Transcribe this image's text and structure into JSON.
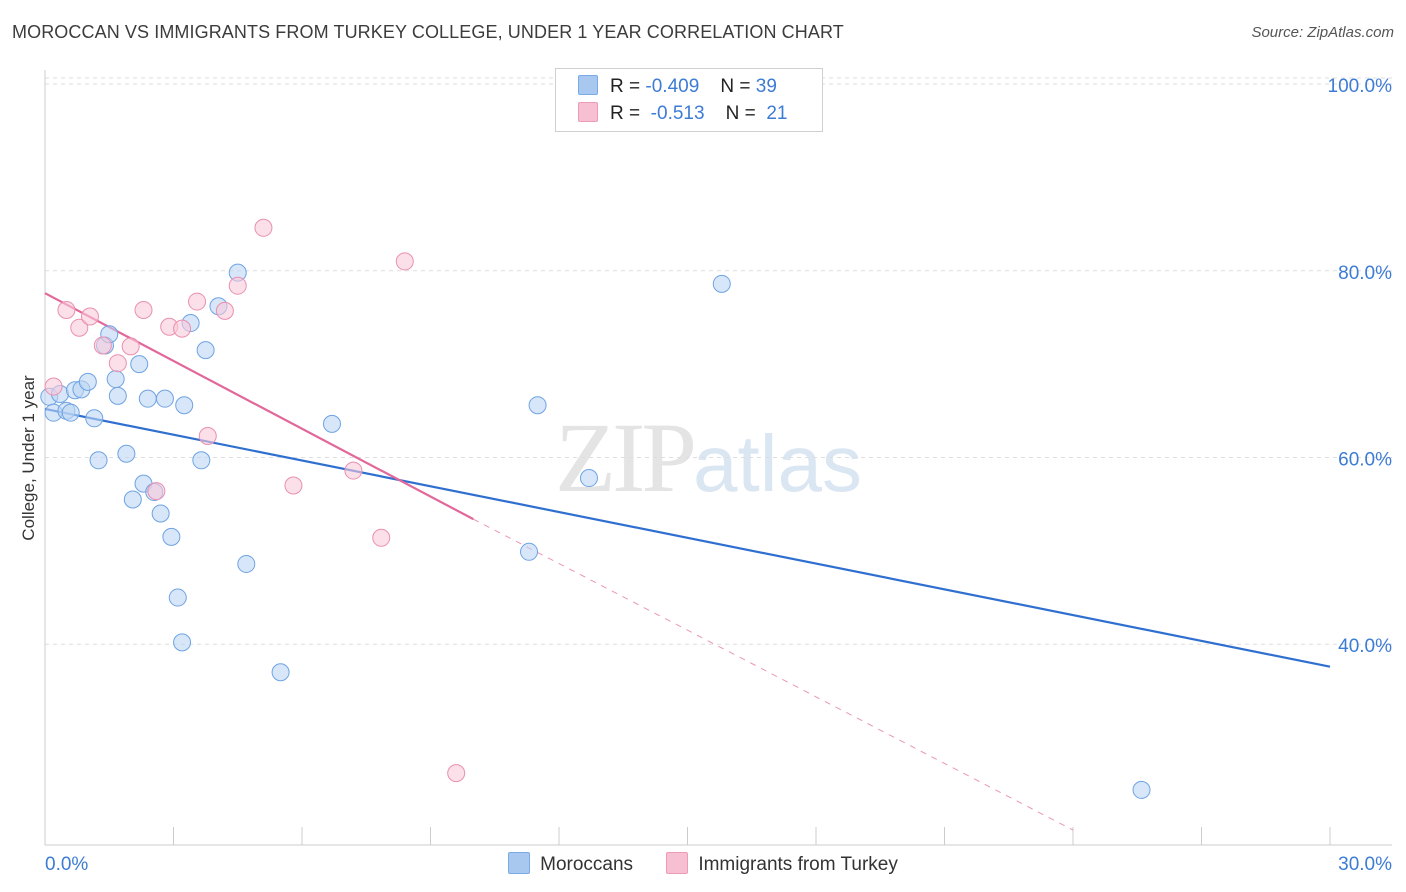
{
  "title": "MOROCCAN VS IMMIGRANTS FROM TURKEY COLLEGE, UNDER 1 YEAR CORRELATION CHART",
  "source": "Source: ZipAtlas.com",
  "watermark": {
    "zip": "ZIP",
    "atlas": "atlas"
  },
  "legend": {
    "rows": [
      {
        "r_label": "R =",
        "r_value": "-0.409",
        "n_label": "N =",
        "n_value": "39",
        "color": "#a9c8f0",
        "border": "#7aaae6"
      },
      {
        "r_label": "R =",
        "r_value": "-0.513",
        "n_label": "N =",
        "n_value": "21",
        "color": "#f6c0d2",
        "border": "#ee9ab6"
      }
    ]
  },
  "bottom_legend": [
    {
      "label": "Moroccans",
      "color": "#a9c8f0",
      "border": "#7aaae6"
    },
    {
      "label": "Immigrants from Turkey",
      "color": "#f6c0d2",
      "border": "#ee9ab6"
    }
  ],
  "chart_data": {
    "type": "scatter",
    "title": "MOROCCAN VS IMMIGRANTS FROM TURKEY COLLEGE, UNDER 1 YEAR CORRELATION CHART",
    "xlabel": "",
    "ylabel": "College, Under 1 year",
    "xlim": [
      0,
      30
    ],
    "ylim": [
      18.5,
      101.5
    ],
    "x_tick_labels": {
      "min": "0.0%",
      "max": "30.0%"
    },
    "y_ticks": [
      {
        "value": 100,
        "label": "100.0%"
      },
      {
        "value": 80,
        "label": "80.0%"
      },
      {
        "value": 60,
        "label": "60.0%"
      },
      {
        "value": 40,
        "label": "40.0%"
      }
    ],
    "grid": true,
    "series": [
      {
        "name": "Moroccans",
        "color": "#6fa3e3",
        "fill": "#bcd5f4",
        "trend": {
          "x0": 0,
          "y0": 65.2,
          "x1": 30,
          "y1": 37.6,
          "extend_dashed": false
        },
        "points": [
          [
            0.1,
            66.5
          ],
          [
            0.2,
            64.8
          ],
          [
            0.35,
            66.8
          ],
          [
            0.5,
            65.0
          ],
          [
            0.6,
            64.8
          ],
          [
            0.7,
            67.2
          ],
          [
            0.85,
            67.3
          ],
          [
            1.0,
            68.1
          ],
          [
            1.15,
            64.2
          ],
          [
            1.25,
            59.7
          ],
          [
            1.4,
            72.0
          ],
          [
            1.5,
            73.2
          ],
          [
            1.65,
            68.4
          ],
          [
            1.7,
            66.6
          ],
          [
            1.9,
            60.4
          ],
          [
            2.05,
            55.5
          ],
          [
            2.2,
            70.0
          ],
          [
            2.3,
            57.2
          ],
          [
            2.4,
            66.3
          ],
          [
            2.55,
            56.3
          ],
          [
            2.7,
            54.0
          ],
          [
            2.8,
            66.3
          ],
          [
            2.95,
            51.5
          ],
          [
            3.1,
            45.0
          ],
          [
            3.2,
            40.2
          ],
          [
            3.25,
            65.6
          ],
          [
            3.4,
            74.4
          ],
          [
            3.65,
            59.7
          ],
          [
            3.75,
            71.5
          ],
          [
            4.05,
            76.2
          ],
          [
            4.5,
            79.8
          ],
          [
            4.7,
            48.6
          ],
          [
            5.5,
            37.0
          ],
          [
            6.7,
            63.6
          ],
          [
            11.5,
            65.6
          ],
          [
            12.7,
            57.8
          ],
          [
            11.3,
            49.9
          ],
          [
            15.8,
            78.6
          ],
          [
            25.6,
            24.4
          ]
        ]
      },
      {
        "name": "Immigrants from Turkey",
        "color": "#ea90b0",
        "fill": "#f8cadb",
        "trend": {
          "x0": 0,
          "y0": 77.6,
          "x1": 10.0,
          "y1": 53.4,
          "extend_dashed": true,
          "dash_x1": 24.0,
          "dash_y1": 20.1
        },
        "points": [
          [
            0.2,
            67.6
          ],
          [
            0.5,
            75.8
          ],
          [
            0.8,
            73.9
          ],
          [
            1.05,
            75.1
          ],
          [
            1.35,
            72.0
          ],
          [
            1.7,
            70.1
          ],
          [
            2.0,
            71.9
          ],
          [
            2.3,
            75.8
          ],
          [
            2.6,
            56.4
          ],
          [
            2.9,
            74.0
          ],
          [
            3.2,
            73.8
          ],
          [
            3.55,
            76.7
          ],
          [
            3.8,
            62.3
          ],
          [
            4.2,
            75.7
          ],
          [
            4.5,
            78.4
          ],
          [
            5.1,
            84.6
          ],
          [
            5.8,
            57.0
          ],
          [
            7.2,
            58.6
          ],
          [
            7.85,
            51.4
          ],
          [
            8.4,
            81.0
          ],
          [
            9.6,
            26.2
          ]
        ]
      }
    ]
  }
}
